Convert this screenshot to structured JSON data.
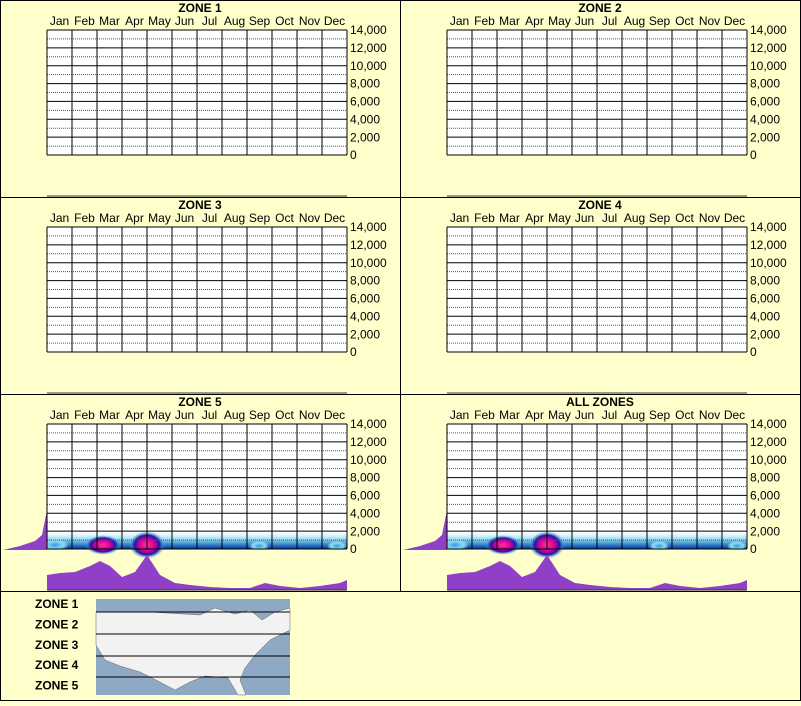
{
  "chart_data": [
    {
      "type": "heatmap",
      "title": "ZONE 1",
      "categories": [
        "Jan",
        "Feb",
        "Mar",
        "Apr",
        "May",
        "Jun",
        "Jul",
        "Aug",
        "Sep",
        "Oct",
        "Nov",
        "Dec"
      ],
      "ylim": [
        0,
        14000
      ],
      "yticks": [
        0,
        {
          "value": 2000,
          "label": "2,000"
        },
        {
          "value": 4000,
          "label": "4,000"
        },
        {
          "value": 6000,
          "label": "6,000"
        },
        {
          "value": 8000,
          "label": "8,000"
        },
        {
          "value": 10000,
          "label": "10,000"
        },
        {
          "value": 12000,
          "label": "12,000"
        },
        {
          "value": 14000,
          "label": "14,000"
        }
      ],
      "minor_yticks": [
        1000,
        3000,
        5000,
        7000,
        9000,
        11000,
        13000
      ],
      "density": false
    },
    {
      "type": "heatmap",
      "title": "ZONE 2",
      "categories": [
        "Jan",
        "Feb",
        "Mar",
        "Apr",
        "May",
        "Jun",
        "Jul",
        "Aug",
        "Sep",
        "Oct",
        "Nov",
        "Dec"
      ],
      "ylim": [
        0,
        14000
      ],
      "yticks": [
        0,
        {
          "value": 2000,
          "label": "2,000"
        },
        {
          "value": 4000,
          "label": "4,000"
        },
        {
          "value": 6000,
          "label": "6,000"
        },
        {
          "value": 8000,
          "label": "8,000"
        },
        {
          "value": 10000,
          "label": "10,000"
        },
        {
          "value": 12000,
          "label": "12,000"
        },
        {
          "value": 14000,
          "label": "14,000"
        }
      ],
      "minor_yticks": [
        1000,
        3000,
        5000,
        7000,
        9000,
        11000,
        13000
      ],
      "density": false
    },
    {
      "type": "heatmap",
      "title": "ZONE 3",
      "categories": [
        "Jan",
        "Feb",
        "Mar",
        "Apr",
        "May",
        "Jun",
        "Jul",
        "Aug",
        "Sep",
        "Oct",
        "Nov",
        "Dec"
      ],
      "ylim": [
        0,
        14000
      ],
      "yticks": [
        0,
        {
          "value": 2000,
          "label": "2,000"
        },
        {
          "value": 4000,
          "label": "4,000"
        },
        {
          "value": 6000,
          "label": "6,000"
        },
        {
          "value": 8000,
          "label": "8,000"
        },
        {
          "value": 10000,
          "label": "10,000"
        },
        {
          "value": 12000,
          "label": "12,000"
        },
        {
          "value": 14000,
          "label": "14,000"
        }
      ],
      "minor_yticks": [
        1000,
        3000,
        5000,
        7000,
        9000,
        11000,
        13000
      ],
      "density": false
    },
    {
      "type": "heatmap",
      "title": "ZONE 4",
      "categories": [
        "Jan",
        "Feb",
        "Mar",
        "Apr",
        "May",
        "Jun",
        "Jul",
        "Aug",
        "Sep",
        "Oct",
        "Nov",
        "Dec"
      ],
      "ylim": [
        0,
        14000
      ],
      "yticks": [
        0,
        {
          "value": 2000,
          "label": "2,000"
        },
        {
          "value": 4000,
          "label": "4,000"
        },
        {
          "value": 6000,
          "label": "6,000"
        },
        {
          "value": 8000,
          "label": "8,000"
        },
        {
          "value": 10000,
          "label": "10,000"
        },
        {
          "value": 12000,
          "label": "12,000"
        },
        {
          "value": 14000,
          "label": "14,000"
        }
      ],
      "minor_yticks": [
        1000,
        3000,
        5000,
        7000,
        9000,
        11000,
        13000
      ],
      "density": false
    },
    {
      "type": "heatmap",
      "title": "ZONE 5",
      "categories": [
        "Jan",
        "Feb",
        "Mar",
        "Apr",
        "May",
        "Jun",
        "Jul",
        "Aug",
        "Sep",
        "Oct",
        "Nov",
        "Dec"
      ],
      "ylim": [
        0,
        14000
      ],
      "yticks": [
        0,
        {
          "value": 2000,
          "label": "2,000"
        },
        {
          "value": 4000,
          "label": "4,000"
        },
        {
          "value": 6000,
          "label": "6,000"
        },
        {
          "value": 8000,
          "label": "8,000"
        },
        {
          "value": 10000,
          "label": "10,000"
        },
        {
          "value": 12000,
          "label": "12,000"
        },
        {
          "value": 14000,
          "label": "14,000"
        }
      ],
      "minor_yticks": [
        1000,
        3000,
        5000,
        7000,
        9000,
        11000,
        13000
      ],
      "density": true
    },
    {
      "type": "heatmap",
      "title": "ALL ZONES",
      "categories": [
        "Jan",
        "Feb",
        "Mar",
        "Apr",
        "May",
        "Jun",
        "Jul",
        "Aug",
        "Sep",
        "Oct",
        "Nov",
        "Dec"
      ],
      "ylim": [
        0,
        14000
      ],
      "yticks": [
        0,
        {
          "value": 2000,
          "label": "2,000"
        },
        {
          "value": 4000,
          "label": "4,000"
        },
        {
          "value": 6000,
          "label": "6,000"
        },
        {
          "value": 8000,
          "label": "8,000"
        },
        {
          "value": 10000,
          "label": "10,000"
        },
        {
          "value": 12000,
          "label": "12,000"
        },
        {
          "value": 14000,
          "label": "14,000"
        }
      ],
      "minor_yticks": [
        1000,
        3000,
        5000,
        7000,
        9000,
        11000,
        13000
      ],
      "density": true
    }
  ],
  "legend": {
    "zones": [
      "ZONE 1",
      "ZONE 2",
      "ZONE 3",
      "ZONE 4",
      "ZONE 5"
    ]
  }
}
